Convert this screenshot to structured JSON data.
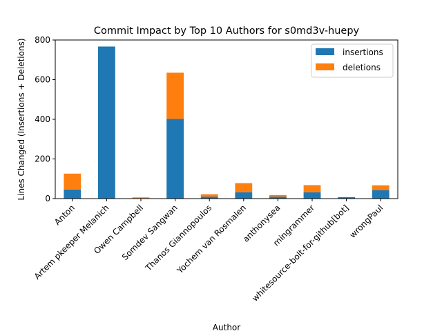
{
  "chart_data": {
    "type": "bar",
    "stacked": true,
    "title": "Commit Impact by Top 10 Authors for s0md3v-huepy",
    "xlabel": "Author",
    "ylabel": "Lines Changed (Insertions + Deletions)",
    "ylim": [
      0,
      800
    ],
    "yticks": [
      0,
      200,
      400,
      600,
      800
    ],
    "grid": false,
    "legend_position": "top-right",
    "categories": [
      "Anton",
      "Artem pkeeper Melanich",
      "Owen Campbell",
      "Somdev Sangwan",
      "Thanos Giannopoulos",
      "Yochem van Rosmalen",
      "anthonysea",
      "mingrammer",
      "whitesource-bolt-for-github[bot]",
      "wrongPaul"
    ],
    "series": [
      {
        "name": "insertions",
        "color": "#1f77b4",
        "values": [
          46,
          767,
          2,
          402,
          10,
          32,
          10,
          32,
          7,
          43
        ]
      },
      {
        "name": "deletions",
        "color": "#ff7f0e",
        "values": [
          80,
          0,
          4,
          233,
          12,
          46,
          8,
          36,
          0,
          24
        ]
      }
    ]
  }
}
